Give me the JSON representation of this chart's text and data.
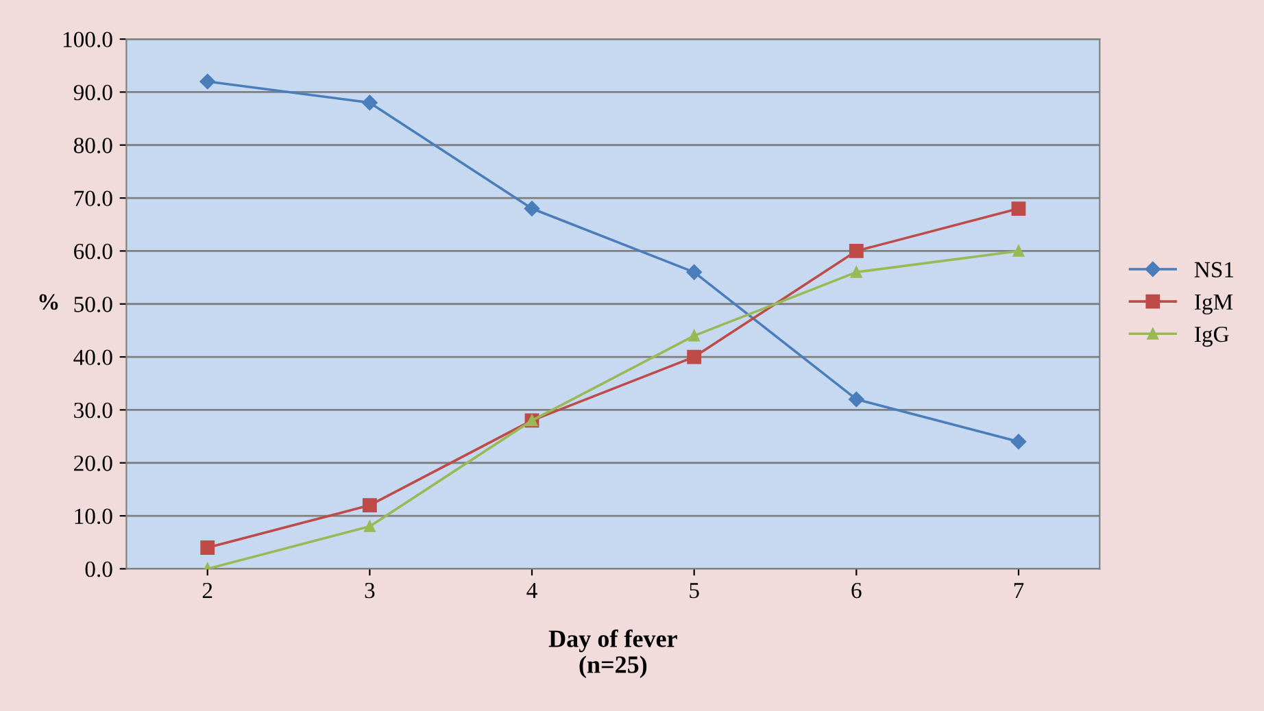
{
  "chart_data": {
    "type": "line",
    "xlabel": "Day of fever\n(n=25)",
    "ylabel": "%",
    "categories": [
      "2",
      "3",
      "4",
      "5",
      "6",
      "7"
    ],
    "series": [
      {
        "name": "NS1",
        "color": "#4a7ebb",
        "marker": "diamond",
        "values": [
          92,
          88,
          68,
          56,
          32,
          24
        ]
      },
      {
        "name": "IgM",
        "color": "#be4b48",
        "marker": "square",
        "values": [
          4,
          12,
          28,
          40,
          60,
          68
        ]
      },
      {
        "name": "IgG",
        "color": "#98b954",
        "marker": "triangle",
        "values": [
          0,
          8,
          28,
          44,
          56,
          60
        ]
      }
    ],
    "ylim": [
      0,
      100
    ],
    "yticks": [
      {
        "value": 0,
        "label": "0.0"
      },
      {
        "value": 10,
        "label": "10.0"
      },
      {
        "value": 20,
        "label": "20.0"
      },
      {
        "value": 30,
        "label": "30.0"
      },
      {
        "value": 40,
        "label": "40.0"
      },
      {
        "value": 50,
        "label": "50.0"
      },
      {
        "value": 60,
        "label": "60.0"
      },
      {
        "value": 70,
        "label": "70.0"
      },
      {
        "value": 80,
        "label": "80.0"
      },
      {
        "value": 90,
        "label": "90.0"
      },
      {
        "value": 100,
        "label": "100.0"
      }
    ],
    "grid": "y",
    "legend": "right",
    "line_style": "solid"
  }
}
